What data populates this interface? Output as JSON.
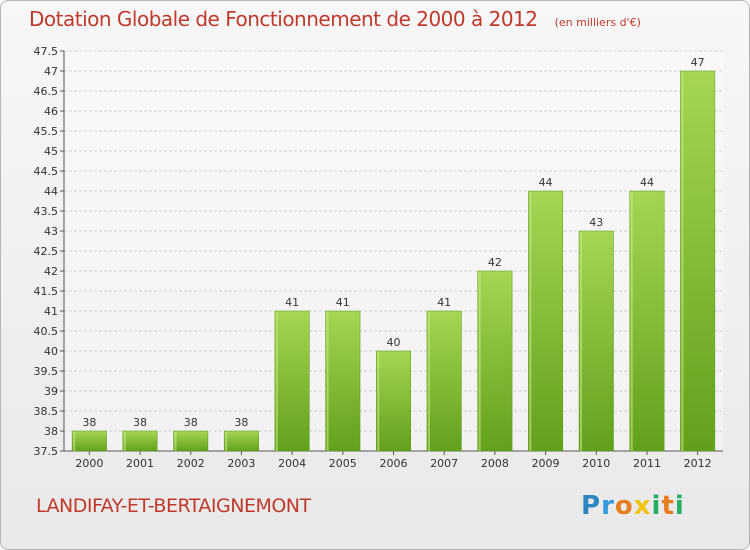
{
  "chart_data": {
    "type": "bar",
    "title": "Dotation Globale de Fonctionnement de 2000 à 2012",
    "subtitle": "(en milliers d'€)",
    "categories": [
      "2000",
      "2001",
      "2002",
      "2003",
      "2004",
      "2005",
      "2006",
      "2007",
      "2008",
      "2009",
      "2010",
      "2011",
      "2012"
    ],
    "values": [
      38,
      38,
      38,
      38,
      41,
      41,
      40,
      41,
      42,
      44,
      43,
      44,
      47
    ],
    "ylim": [
      37.5,
      47.5
    ],
    "yticks": [
      "37.5",
      "38",
      "38.5",
      "39",
      "39.5",
      "40",
      "40.5",
      "41",
      "41.5",
      "42",
      "42.5",
      "43",
      "43.5",
      "44",
      "44.5",
      "45",
      "45.5",
      "46",
      "46.5",
      "47",
      "47.5"
    ],
    "grid": true,
    "xlabel": "",
    "ylabel": ""
  },
  "place_name": "LANDIFAY-ET-BERTAIGNEMONT",
  "logo": {
    "letters": [
      "P",
      "r",
      "o",
      "x",
      "i",
      "t",
      "i"
    ],
    "colors": [
      "#2e86c1",
      "#3498db",
      "#e67e22",
      "#f1c40f",
      "#27ae60",
      "#e67e22",
      "#27ae60"
    ]
  },
  "colors": {
    "accent": "#c0392b",
    "bar_light": "#9fd24a",
    "bar_dark": "#6aa51f"
  }
}
